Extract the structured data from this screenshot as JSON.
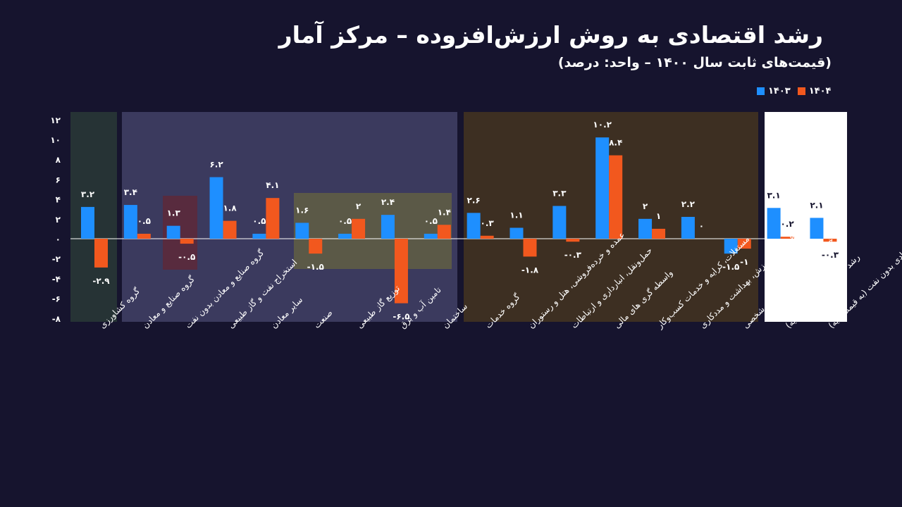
{
  "title": "رشد اقتصادی به روش ارزش‌افزوده – مرکز آمار",
  "subtitle": "(قیمت‌های ثابت سال ۱۴۰۰ – واحد: درصد)",
  "colors": {
    "series_1403": "#1e8fff",
    "series_1404": "#f2581e",
    "background": "#16142e",
    "band_agri": "#263335",
    "band_industry": "#3b3a5e",
    "band_services": "#3d2f22",
    "band_total": "#ffffff",
    "highlight_red": "#5a2a3c",
    "highlight_olive": "#5d5b46"
  },
  "legend": [
    {
      "label": "۱۴۰۳",
      "color": "#1e8fff"
    },
    {
      "label": "۱۴۰۴",
      "color": "#f2581e"
    }
  ],
  "chart_data": {
    "type": "bar",
    "title": "رشد اقتصادی به روش ارزش‌افزوده – مرکز آمار",
    "subtitle": "(قیمت‌های ثابت سال ۱۴۰۰ – واحد: درصد)",
    "ylim": [
      -8,
      12
    ],
    "yticks": [
      -8,
      -6,
      -4,
      -2,
      0,
      2,
      4,
      6,
      8,
      10,
      12
    ],
    "ytick_labels": [
      "-۸",
      "-۶",
      "-۴",
      "-۲",
      "۰",
      "۲",
      "۴",
      "۶",
      "۸",
      "۱۰",
      "۱۲"
    ],
    "legend_position": "top-right",
    "categories": [
      "گروه کشاورزی",
      "گروه صنایع و معادن",
      "گروه صنایع و معادن بدون نفت",
      "استخراج نفت و گاز طبیعی",
      "سایر معادن",
      "صنعت",
      "توزیع گاز طبیعی",
      "تامین آب و برق",
      "ساختمان",
      "گروه خدمات",
      "عمده و خرده‌فروشی، هتل و رستوران",
      "حمل‌ونقل، انبارداری و ارتباطات",
      "واسطه گری های مالی",
      "مستغلات، کرایه و خدمات کسب‌وکار",
      "امورعمومی، آموزش، بهداشت و مددکاری",
      "سایر خدمات عمومی، اجتماعی و شخصی",
      "رشد اقتصادی (به قیمت پایه)",
      "رشد اقتصادی بدون نفت (به قیمت پایه)"
    ],
    "series": [
      {
        "name": "۱۴۰۳",
        "values": [
          3.2,
          3.4,
          1.3,
          6.2,
          0.5,
          1.6,
          0.5,
          2.4,
          0.5,
          2.6,
          1.1,
          3.3,
          10.2,
          2,
          2.2,
          -1.5,
          3.1,
          2.1
        ],
        "labels": [
          "۳.۲",
          "۳.۴",
          "۱.۳",
          "۶.۲",
          "۰.۵",
          "۱.۶",
          "۰.۵",
          "۲.۴",
          "۰.۵",
          "۲.۶",
          "۱.۱",
          "۳.۳",
          "۱۰.۲",
          "۲",
          "۲.۲",
          "-۱.۵",
          "۳.۱",
          "۲.۱"
        ]
      },
      {
        "name": "۱۴۰۴",
        "values": [
          -2.9,
          0.5,
          -0.5,
          1.8,
          4.1,
          -1.5,
          2,
          -6.5,
          1.4,
          0.3,
          -1.8,
          -0.3,
          8.4,
          1,
          0,
          -1,
          0.2,
          -0.3
        ],
        "labels": [
          "-۲.۹",
          "۰.۵",
          "-۰.۵",
          "۱.۸",
          "۴.۱",
          "-۱.۵",
          "۲",
          "-۶.۵",
          "۱.۴",
          "۰.۳",
          "-۱.۸",
          "-۰.۳",
          "۸.۴",
          "۱",
          "۰",
          "-۱",
          "۰.۲",
          "-۰.۳"
        ]
      }
    ],
    "groups": [
      {
        "name": "agriculture",
        "from": 0,
        "to": 0
      },
      {
        "name": "industry",
        "from": 1,
        "to": 8
      },
      {
        "name": "services",
        "from": 9,
        "to": 15
      },
      {
        "name": "total",
        "from": 16,
        "to": 17
      }
    ]
  }
}
